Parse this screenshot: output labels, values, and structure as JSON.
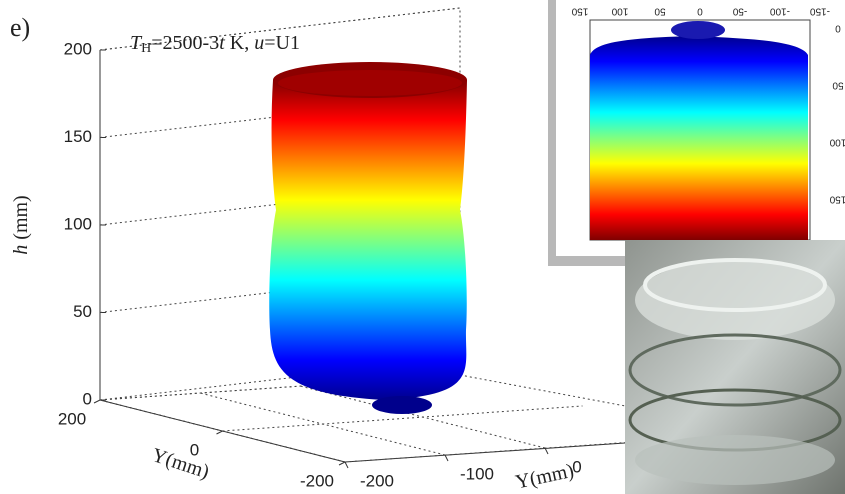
{
  "panel_label": "e)",
  "chart_data": {
    "type": "surface3d",
    "title_parts": [
      "T",
      "H",
      "=2500-3",
      "t",
      " K, ",
      "u",
      "=U1"
    ],
    "zlabel_parts": [
      "h",
      " (mm)"
    ],
    "ylabel": "Y(mm)",
    "xlabel": "Y(mm)",
    "zlim": [
      0,
      200
    ],
    "zticks": [
      0,
      50,
      100,
      150,
      200
    ],
    "ylim": [
      -200,
      200
    ],
    "yticks": [
      200,
      0,
      -200
    ],
    "xlim": [
      -200,
      200
    ],
    "xticks": [
      -200,
      -100,
      0
    ],
    "colormap": "jet",
    "grid": true
  },
  "inset": {
    "top_ticks": [
      150,
      100,
      50,
      0,
      -50,
      -100,
      -150
    ],
    "right_ticks": [
      0,
      50,
      100,
      150
    ]
  }
}
